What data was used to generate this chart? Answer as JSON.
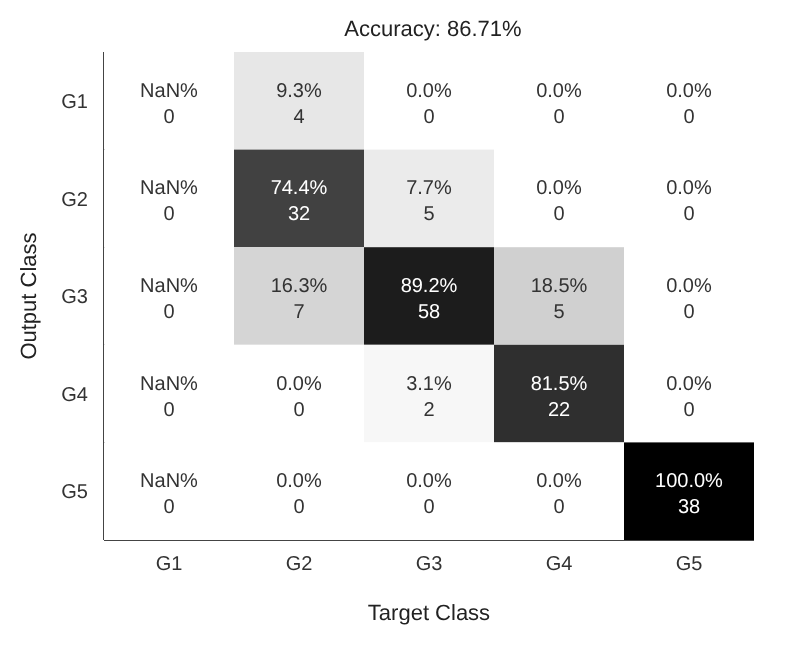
{
  "chart_data": {
    "type": "heatmap",
    "title": "Accuracy: 86.71%",
    "xlabel": "Target Class",
    "ylabel": "Output Class",
    "categories": [
      "G1",
      "G2",
      "G3",
      "G4",
      "G5"
    ],
    "y_categories": [
      "G1",
      "G2",
      "G3",
      "G4",
      "G5"
    ],
    "cells": [
      [
        null,
        9.3,
        0.0,
        0.0,
        0.0
      ],
      [
        null,
        74.4,
        7.7,
        0.0,
        0.0
      ],
      [
        null,
        16.3,
        89.2,
        18.5,
        0.0
      ],
      [
        null,
        0.0,
        3.1,
        81.5,
        0.0
      ],
      [
        null,
        0.0,
        0.0,
        0.0,
        100.0
      ]
    ],
    "cell_labels": [
      [
        "NaN%",
        "9.3%",
        "0.0%",
        "0.0%",
        "0.0%"
      ],
      [
        "NaN%",
        "74.4%",
        "7.7%",
        "0.0%",
        "0.0%"
      ],
      [
        "NaN%",
        "16.3%",
        "89.2%",
        "18.5%",
        "0.0%"
      ],
      [
        "NaN%",
        "0.0%",
        "3.1%",
        "81.5%",
        "0.0%"
      ],
      [
        "NaN%",
        "0.0%",
        "0.0%",
        "0.0%",
        "100.0%"
      ]
    ],
    "annotations": [
      "0",
      "4",
      "0",
      "0",
      "0",
      "0",
      "32",
      "5",
      "0",
      "0",
      "0",
      "7",
      "58",
      "5",
      "0",
      "0",
      "0",
      "2",
      "22",
      "0",
      "0",
      "0",
      "0",
      "0",
      "38"
    ]
  }
}
